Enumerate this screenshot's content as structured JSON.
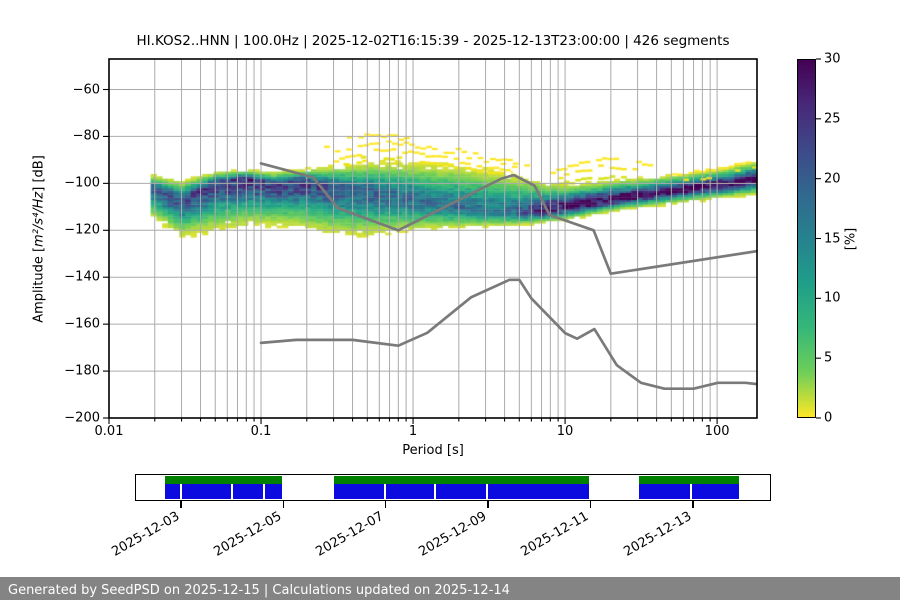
{
  "title": "HI.KOS2..HNN | 100.0Hz | 2025-12-02T16:15:39 - 2025-12-13T23:00:00 | 426 segments",
  "footer": {
    "text": "Generated by SeedPSD on 2025-12-15 | Calculations updated on 2025-12-14",
    "bg_color": "#848484",
    "text_color": "#ffffff"
  },
  "chart_data": {
    "type": "heatmap",
    "title": "HI.KOS2..HNN | 100.0Hz | 2025-12-02T16:15:39 - 2025-12-13T23:00:00 | 426 segments",
    "xlabel": "Period [s]",
    "ylabel_prefix": "Amplitude [",
    "ylabel_math": "m²/s⁴/Hz",
    "ylabel_suffix": "] [dB]",
    "xscale": "log",
    "xlim": [
      0.01,
      183
    ],
    "ylim": [
      -200,
      -47
    ],
    "grid": true,
    "grid_color": "#ababab",
    "xticks": [
      0.01,
      0.1,
      1,
      10,
      100
    ],
    "xtick_labels": [
      "0.01",
      "0.1",
      "1",
      "10",
      "100"
    ],
    "yticks": [
      -60,
      -80,
      -100,
      -120,
      -140,
      -160,
      -180,
      -200
    ],
    "ytick_labels": [
      "−60",
      "−80",
      "−100",
      "−120",
      "−140",
      "−160",
      "−180",
      "−200"
    ],
    "colorbar": {
      "label": "[%]",
      "min": 0,
      "max": 30,
      "ticks": [
        0,
        5,
        10,
        15,
        20,
        25,
        30
      ],
      "tick_labels": [
        "0",
        "5",
        "10",
        "15",
        "20",
        "25",
        "30"
      ],
      "colormap": "viridis_r"
    },
    "noise_models": {
      "color": "#7a7a7a",
      "high_model": [
        [
          0.1,
          -91.5
        ],
        [
          0.22,
          -97.4
        ],
        [
          0.32,
          -110.5
        ],
        [
          0.8,
          -120.0
        ],
        [
          3.8,
          -98.0
        ],
        [
          4.6,
          -96.5
        ],
        [
          6.3,
          -101.0
        ],
        [
          7.9,
          -113.5
        ],
        [
          15.4,
          -120.0
        ],
        [
          20.0,
          -138.5
        ],
        [
          354.8,
          -126.0
        ]
      ],
      "low_model": [
        [
          0.1,
          -168.0
        ],
        [
          0.17,
          -166.7
        ],
        [
          0.4,
          -166.7
        ],
        [
          0.8,
          -169.2
        ],
        [
          1.24,
          -163.7
        ],
        [
          2.4,
          -148.6
        ],
        [
          4.3,
          -141.1
        ],
        [
          5.0,
          -141.1
        ],
        [
          6.0,
          -149.0
        ],
        [
          10.0,
          -163.8
        ],
        [
          12.0,
          -166.2
        ],
        [
          15.6,
          -162.1
        ],
        [
          21.9,
          -177.5
        ],
        [
          31.6,
          -185.0
        ],
        [
          45.0,
          -187.5
        ],
        [
          70.0,
          -187.5
        ],
        [
          101.0,
          -185.0
        ],
        [
          154.0,
          -185.0
        ],
        [
          328.0,
          -187.5
        ]
      ]
    },
    "ppsd": {
      "period_bins_per_octave": 8,
      "db_bin_width": 1,
      "envelope": [
        {
          "p": 0.019,
          "mode": -102.5,
          "top": -97.0,
          "bot": -114.0,
          "peak": 20
        },
        {
          "p": 0.03,
          "mode": -108.0,
          "top": -100.0,
          "bot": -122.0,
          "peak": 22
        },
        {
          "p": 0.05,
          "mode": -100.5,
          "top": -96.0,
          "bot": -119.0,
          "peak": 24
        },
        {
          "p": 0.08,
          "mode": -98.5,
          "top": -95.0,
          "bot": -117.0,
          "peak": 25
        },
        {
          "p": 0.12,
          "mode": -101.5,
          "top": -96.0,
          "bot": -117.0,
          "peak": 23
        },
        {
          "p": 0.18,
          "mode": -99.5,
          "top": -95.0,
          "bot": -118.0,
          "peak": 24
        },
        {
          "p": 0.3,
          "mode": -102.5,
          "top": -94.0,
          "bot": -121.0,
          "peak": 21
        },
        {
          "p": 0.5,
          "mode": -104.0,
          "top": -92.5,
          "bot": -122.0,
          "peak": 19
        },
        {
          "p": 0.8,
          "mode": -106.0,
          "top": -92.5,
          "bot": -120.5,
          "peak": 18
        },
        {
          "p": 1.3,
          "mode": -109.0,
          "top": -93.0,
          "bot": -119.5,
          "peak": 17
        },
        {
          "p": 2.2,
          "mode": -111.0,
          "top": -94.0,
          "bot": -119.0,
          "peak": 17
        },
        {
          "p": 3.5,
          "mode": -112.5,
          "top": -96.0,
          "bot": -118.5,
          "peak": 16
        },
        {
          "p": 5.0,
          "mode": -113.0,
          "top": -98.5,
          "bot": -118.0,
          "peak": 19
        },
        {
          "p": 7.0,
          "mode": -112.5,
          "top": -101.0,
          "bot": -117.0,
          "peak": 27
        },
        {
          "p": 10.0,
          "mode": -110.5,
          "top": -102.0,
          "bot": -115.5,
          "peak": 29
        },
        {
          "p": 15.0,
          "mode": -108.5,
          "top": -101.0,
          "bot": -113.5,
          "peak": 30
        },
        {
          "p": 25.0,
          "mode": -106.5,
          "top": -99.5,
          "bot": -111.0,
          "peak": 30
        },
        {
          "p": 40.0,
          "mode": -104.5,
          "top": -98.5,
          "bot": -109.5,
          "peak": 30
        },
        {
          "p": 70.0,
          "mode": -102.5,
          "top": -96.5,
          "bot": -107.5,
          "peak": 30
        },
        {
          "p": 110.0,
          "mode": -101.0,
          "top": -95.0,
          "bot": -106.0,
          "peak": 30
        },
        {
          "p": 183.0,
          "mode": -99.0,
          "top": -91.5,
          "bot": -104.5,
          "peak": 30
        }
      ]
    },
    "scatter_arcs": [
      {
        "color": "#fce51e",
        "gap": 0.4,
        "h": 2.2,
        "pts": [
          [
            0.26,
            -84
          ],
          [
            0.35,
            -80.5
          ],
          [
            0.5,
            -79
          ],
          [
            0.7,
            -79.5
          ],
          [
            1.0,
            -81.5
          ],
          [
            1.6,
            -84
          ],
          [
            2.5,
            -87
          ],
          [
            4.0,
            -90
          ],
          [
            6.0,
            -92.5
          ]
        ]
      },
      {
        "color": "#fde725",
        "gap": 0.38,
        "h": 2.2,
        "pts": [
          [
            0.28,
            -87
          ],
          [
            0.4,
            -83.5
          ],
          [
            0.55,
            -82
          ],
          [
            0.8,
            -82.5
          ],
          [
            1.2,
            -84.5
          ],
          [
            2.0,
            -87.5
          ],
          [
            3.2,
            -90.5
          ],
          [
            5.0,
            -93
          ]
        ]
      },
      {
        "color": "#fde725",
        "gap": 0.35,
        "h": 2.4,
        "pts": [
          [
            0.3,
            -90
          ],
          [
            0.45,
            -86.5
          ],
          [
            0.65,
            -85
          ],
          [
            1.0,
            -86.5
          ],
          [
            1.8,
            -89.5
          ],
          [
            3.0,
            -92.5
          ],
          [
            4.5,
            -94.5
          ]
        ]
      },
      {
        "color": "#f1e51d",
        "gap": 0.3,
        "h": 2.6,
        "pts": [
          [
            0.3,
            -93
          ],
          [
            0.5,
            -89.5
          ],
          [
            0.8,
            -89
          ],
          [
            1.4,
            -91
          ],
          [
            2.4,
            -93.5
          ],
          [
            4.0,
            -95.5
          ]
        ]
      },
      {
        "color": "#e5e419",
        "gap": 0.25,
        "h": 3.0,
        "pts": [
          [
            0.32,
            -92.5
          ],
          [
            0.42,
            -89
          ],
          [
            0.55,
            -88
          ],
          [
            0.7,
            -89
          ],
          [
            0.9,
            -91.5
          ]
        ]
      },
      {
        "color": "#fde725",
        "gap": 0.35,
        "h": 2.4,
        "pts": [
          [
            8.0,
            -95
          ],
          [
            11,
            -91.5
          ],
          [
            15,
            -89.5
          ],
          [
            20,
            -89
          ],
          [
            28,
            -90.5
          ],
          [
            38,
            -93
          ]
        ]
      },
      {
        "color": "#f6e41f",
        "gap": 0.35,
        "h": 2.4,
        "pts": [
          [
            9.0,
            -97
          ],
          [
            13,
            -94
          ],
          [
            18,
            -92
          ],
          [
            25,
            -93
          ],
          [
            33,
            -95.5
          ]
        ]
      },
      {
        "color": "#d8e219",
        "gap": 0.3,
        "h": 2.6,
        "pts": [
          [
            9.0,
            -100
          ],
          [
            14,
            -97.5
          ],
          [
            22,
            -96.5
          ],
          [
            30,
            -98
          ]
        ]
      },
      {
        "color": "#fde725",
        "gap": 0.45,
        "h": 2.2,
        "pts": [
          [
            50,
            -96
          ],
          [
            70,
            -94.5
          ],
          [
            100,
            -93
          ],
          [
            140,
            -91.5
          ],
          [
            183,
            -90.5
          ]
        ]
      },
      {
        "color": "#ece41c",
        "gap": 0.4,
        "h": 2.4,
        "pts": [
          [
            60,
            -98.5
          ],
          [
            90,
            -96.5
          ],
          [
            130,
            -94.5
          ],
          [
            183,
            -92.5
          ]
        ]
      }
    ],
    "coverage": {
      "green_color": "#008000",
      "blue_color": "#0b0be0",
      "segments_pct": [
        [
          4.5,
          23.1
        ],
        [
          31.2,
          71.4
        ],
        [
          79.4,
          95.1
        ]
      ],
      "dividers_pct": [
        7.1,
        15.2,
        20.2,
        39.3,
        47.2,
        55.4,
        87.6
      ],
      "ticks": [
        {
          "pct": 7.1,
          "label": "2025-12-03"
        },
        {
          "pct": 23.2,
          "label": "2025-12-05"
        },
        {
          "pct": 39.3,
          "label": "2025-12-07"
        },
        {
          "pct": 55.4,
          "label": "2025-12-09"
        },
        {
          "pct": 71.5,
          "label": "2025-12-11"
        },
        {
          "pct": 87.6,
          "label": "2025-12-13"
        }
      ]
    }
  }
}
